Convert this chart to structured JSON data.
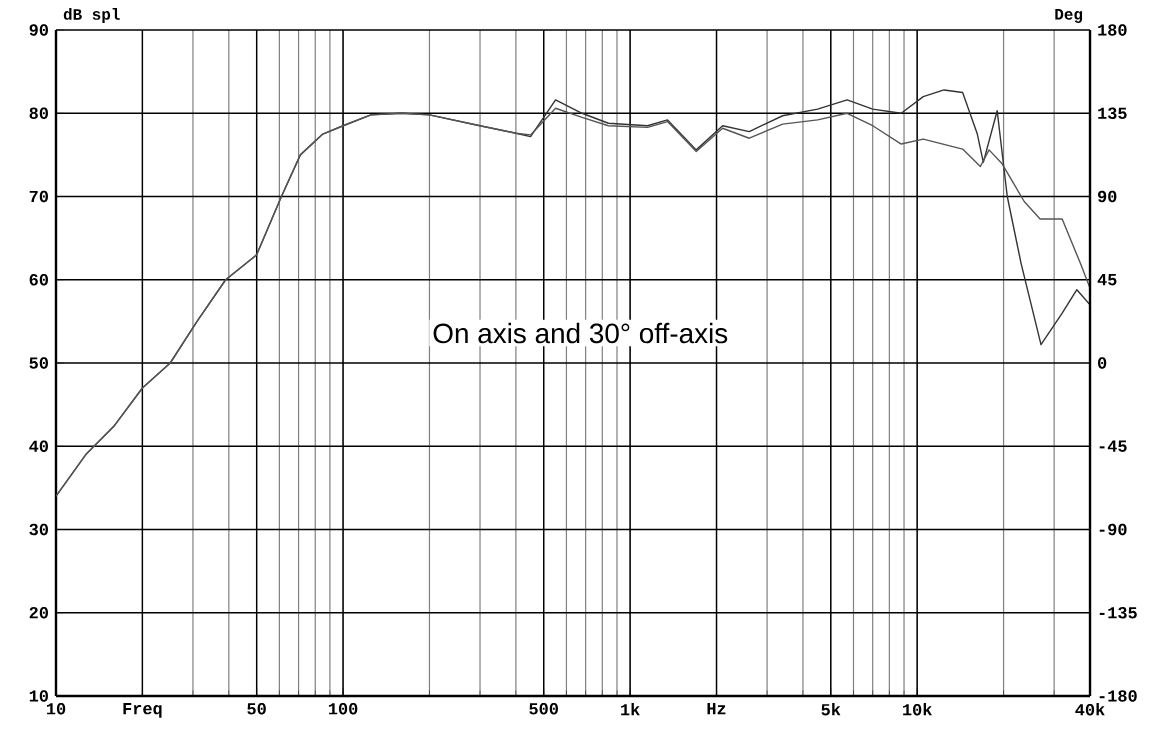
{
  "chart_data": {
    "type": "line",
    "ylabel": "dB spl",
    "y2label": "Deg",
    "log": "x",
    "grid": true,
    "xlim": [
      10,
      40000
    ],
    "ylim": [
      10,
      90
    ],
    "y2lim": [
      -180,
      180
    ],
    "xticks": [
      10,
      {
        "value": 20,
        "label": "Freq"
      },
      50,
      100,
      500,
      {
        "value": 1000,
        "label": "1k"
      },
      {
        "value": 2000,
        "label": "Hz"
      },
      {
        "value": 5000,
        "label": "5k"
      },
      {
        "value": 10000,
        "label": "10k"
      },
      {
        "value": 40000,
        "label": "40k"
      }
    ],
    "yticks": [
      10,
      20,
      30,
      40,
      50,
      60,
      70,
      80,
      90
    ],
    "y2ticks": [
      -180,
      -135,
      -90,
      -45,
      0,
      45,
      90,
      135,
      180
    ],
    "annotations": [
      "On axis and 30° off-axis"
    ],
    "series": [
      {
        "color": "#333333",
        "x": [
          10,
          12.7,
          16,
          20,
          25,
          31,
          39,
          50,
          61,
          71,
          85,
          100,
          125,
          160,
          200,
          300,
          400,
          450,
          550,
          680,
          840,
          1150,
          1350,
          1700,
          2100,
          2600,
          3400,
          4500,
          5700,
          7000,
          8800,
          10500,
          12400,
          14400,
          16200,
          17000,
          19000,
          20600,
          23000,
          27000,
          32000,
          36000,
          40000
        ],
        "values": [
          34,
          39,
          42.5,
          47,
          50,
          55,
          60,
          63,
          70,
          75,
          77.5,
          78.5,
          79.8,
          80,
          79.8,
          78.5,
          77.6,
          77.2,
          81.6,
          80,
          78.8,
          78.5,
          79.2,
          75.6,
          78.5,
          77.8,
          79.7,
          80.5,
          81.6,
          80.5,
          80,
          82,
          82.8,
          82.5,
          77.5,
          74.1,
          80.3,
          70,
          62,
          52.2,
          56,
          58.8,
          57
        ]
      },
      {
        "color": "#555555",
        "x": [
          10,
          12.7,
          16,
          20,
          25,
          31,
          39,
          50,
          61,
          71,
          85,
          100,
          125,
          160,
          200,
          300,
          400,
          450,
          550,
          680,
          840,
          1150,
          1350,
          1700,
          2100,
          2600,
          3400,
          4500,
          5700,
          7000,
          8800,
          10500,
          14400,
          16600,
          17800,
          19700,
          23600,
          26800,
          32000,
          37000,
          40000
        ],
        "values": [
          34,
          39,
          42.5,
          47,
          50,
          55,
          60,
          63,
          70,
          75,
          77.5,
          78.5,
          79.8,
          80,
          79.8,
          78.5,
          77.6,
          77.4,
          80.6,
          79.5,
          78.5,
          78.3,
          79,
          75.4,
          78.2,
          77,
          78.7,
          79.2,
          80,
          78.5,
          76.3,
          76.9,
          75.7,
          73.6,
          75.6,
          74,
          69.4,
          67.3,
          67.3,
          62,
          59
        ]
      }
    ]
  }
}
